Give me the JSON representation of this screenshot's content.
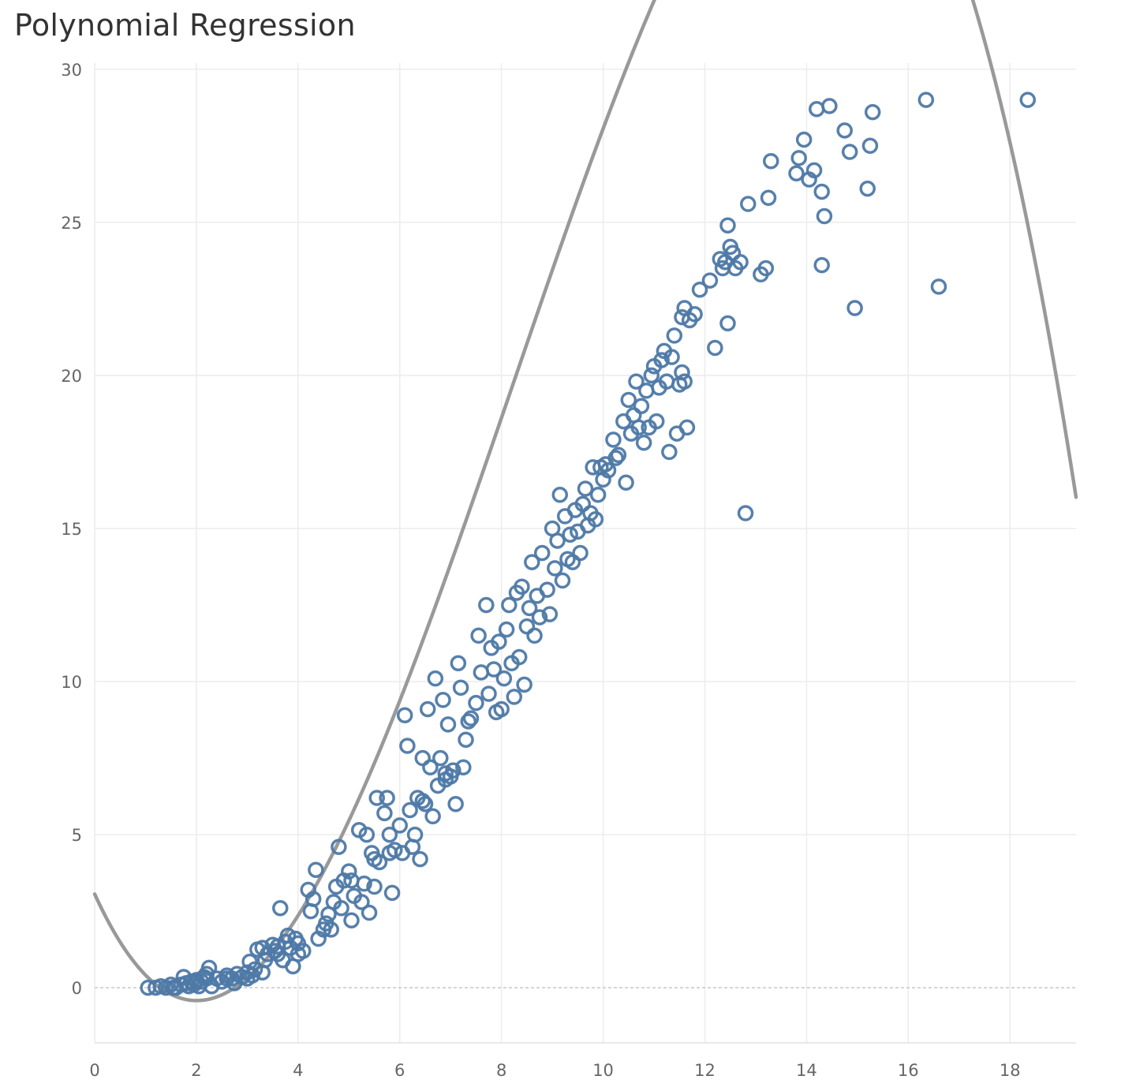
{
  "title": "Polynomial Regression",
  "chart_data": {
    "type": "scatter",
    "title": "Polynomial Regression",
    "xlabel": "",
    "ylabel": "",
    "xlim": [
      0,
      19.3
    ],
    "ylim": [
      -1.8,
      30.2
    ],
    "x_ticks": [
      "0",
      "2",
      "4",
      "6",
      "8",
      "10",
      "12",
      "14",
      "16",
      "18"
    ],
    "y_ticks": [
      "0",
      "5",
      "10",
      "15",
      "20",
      "25",
      "30"
    ],
    "grid": true,
    "colors": {
      "points": "#4e79a7",
      "trend": "#999999",
      "zero_line": "#bbbbbb",
      "grid": "#ececec"
    },
    "trend_line": {
      "type": "polynomial",
      "coefficients": [
        3.06,
        -3.64,
        1.034,
        -0.042
      ]
    },
    "series": [
      {
        "points": [
          [
            1.05,
            0.0
          ],
          [
            1.2,
            0.0
          ],
          [
            1.3,
            0.05
          ],
          [
            1.4,
            0.0
          ],
          [
            1.5,
            0.1
          ],
          [
            1.55,
            0.0
          ],
          [
            1.6,
            0.0
          ],
          [
            1.7,
            0.1
          ],
          [
            1.75,
            0.35
          ],
          [
            1.8,
            0.15
          ],
          [
            1.85,
            0.05
          ],
          [
            1.9,
            0.2
          ],
          [
            1.95,
            0.1
          ],
          [
            2.0,
            0.25
          ],
          [
            2.05,
            0.05
          ],
          [
            2.1,
            0.2
          ],
          [
            2.15,
            0.35
          ],
          [
            2.2,
            0.3
          ],
          [
            2.25,
            0.65
          ],
          [
            2.3,
            0.05
          ],
          [
            2.4,
            0.3
          ],
          [
            2.5,
            0.2
          ],
          [
            2.6,
            0.4
          ],
          [
            2.7,
            0.3
          ],
          [
            2.75,
            0.15
          ],
          [
            2.8,
            0.45
          ],
          [
            2.9,
            0.35
          ],
          [
            3.0,
            0.5
          ],
          [
            3.05,
            0.85
          ],
          [
            3.1,
            0.4
          ],
          [
            3.15,
            0.6
          ],
          [
            3.2,
            1.25
          ],
          [
            3.3,
            1.3
          ],
          [
            3.35,
            0.9
          ],
          [
            3.4,
            1.1
          ],
          [
            3.5,
            1.4
          ],
          [
            3.55,
            1.2
          ],
          [
            3.6,
            1.35
          ],
          [
            3.65,
            2.6
          ],
          [
            3.7,
            0.9
          ],
          [
            3.75,
            1.5
          ],
          [
            3.8,
            1.7
          ],
          [
            3.85,
            1.3
          ],
          [
            3.9,
            0.7
          ],
          [
            3.95,
            1.6
          ],
          [
            4.0,
            1.45
          ],
          [
            4.1,
            1.2
          ],
          [
            4.2,
            3.2
          ],
          [
            4.25,
            2.5
          ],
          [
            4.3,
            2.9
          ],
          [
            4.35,
            3.85
          ],
          [
            4.4,
            1.6
          ],
          [
            4.5,
            1.9
          ],
          [
            4.6,
            2.4
          ],
          [
            4.7,
            2.8
          ],
          [
            4.75,
            3.3
          ],
          [
            4.8,
            4.6
          ],
          [
            4.85,
            2.6
          ],
          [
            4.9,
            3.5
          ],
          [
            5.0,
            3.8
          ],
          [
            5.05,
            2.2
          ],
          [
            5.1,
            3.0
          ],
          [
            5.2,
            5.15
          ],
          [
            5.25,
            2.8
          ],
          [
            5.3,
            3.4
          ],
          [
            5.35,
            5.0
          ],
          [
            5.4,
            2.45
          ],
          [
            5.45,
            4.4
          ],
          [
            5.5,
            3.3
          ],
          [
            5.55,
            6.2
          ],
          [
            5.6,
            4.1
          ],
          [
            5.7,
            5.7
          ],
          [
            5.75,
            6.2
          ],
          [
            5.8,
            4.4
          ],
          [
            5.85,
            3.1
          ],
          [
            5.9,
            4.5
          ],
          [
            6.0,
            5.3
          ],
          [
            6.05,
            4.4
          ],
          [
            6.1,
            8.9
          ],
          [
            6.15,
            7.9
          ],
          [
            6.2,
            5.8
          ],
          [
            6.25,
            4.6
          ],
          [
            6.3,
            5.0
          ],
          [
            6.35,
            6.2
          ],
          [
            6.4,
            4.2
          ],
          [
            6.45,
            7.5
          ],
          [
            6.5,
            6.0
          ],
          [
            6.55,
            9.1
          ],
          [
            6.6,
            7.2
          ],
          [
            6.65,
            5.6
          ],
          [
            6.7,
            10.1
          ],
          [
            6.75,
            6.6
          ],
          [
            6.8,
            7.5
          ],
          [
            6.85,
            9.4
          ],
          [
            6.9,
            6.8
          ],
          [
            6.95,
            8.6
          ],
          [
            7.0,
            6.9
          ],
          [
            7.05,
            7.1
          ],
          [
            7.1,
            6.0
          ],
          [
            7.15,
            10.6
          ],
          [
            7.2,
            9.8
          ],
          [
            7.25,
            7.2
          ],
          [
            7.3,
            8.1
          ],
          [
            7.4,
            8.8
          ],
          [
            7.5,
            9.3
          ],
          [
            7.55,
            11.5
          ],
          [
            7.6,
            10.3
          ],
          [
            7.7,
            12.5
          ],
          [
            7.75,
            9.6
          ],
          [
            7.8,
            11.1
          ],
          [
            7.85,
            10.4
          ],
          [
            7.9,
            9.0
          ],
          [
            7.95,
            11.3
          ],
          [
            8.0,
            9.1
          ],
          [
            8.05,
            10.1
          ],
          [
            8.1,
            11.7
          ],
          [
            8.15,
            12.5
          ],
          [
            8.2,
            10.6
          ],
          [
            8.25,
            9.5
          ],
          [
            8.3,
            12.9
          ],
          [
            8.35,
            10.8
          ],
          [
            8.4,
            13.1
          ],
          [
            8.45,
            9.9
          ],
          [
            8.5,
            11.8
          ],
          [
            8.55,
            12.4
          ],
          [
            8.6,
            13.9
          ],
          [
            8.65,
            11.5
          ],
          [
            8.7,
            12.8
          ],
          [
            8.75,
            12.1
          ],
          [
            8.8,
            14.2
          ],
          [
            8.9,
            13.0
          ],
          [
            8.95,
            12.2
          ],
          [
            9.0,
            15.0
          ],
          [
            9.05,
            13.7
          ],
          [
            9.1,
            14.6
          ],
          [
            9.15,
            16.1
          ],
          [
            9.2,
            13.3
          ],
          [
            9.25,
            15.4
          ],
          [
            9.3,
            14.0
          ],
          [
            9.35,
            14.8
          ],
          [
            9.4,
            13.9
          ],
          [
            9.45,
            15.6
          ],
          [
            9.5,
            14.9
          ],
          [
            9.55,
            14.2
          ],
          [
            9.6,
            15.8
          ],
          [
            9.65,
            16.3
          ],
          [
            9.7,
            15.1
          ],
          [
            9.75,
            15.5
          ],
          [
            9.8,
            17.0
          ],
          [
            9.85,
            15.3
          ],
          [
            9.9,
            16.1
          ],
          [
            9.95,
            17.0
          ],
          [
            10.0,
            16.6
          ],
          [
            10.05,
            17.1
          ],
          [
            10.1,
            16.9
          ],
          [
            10.2,
            17.9
          ],
          [
            10.25,
            17.3
          ],
          [
            10.3,
            17.4
          ],
          [
            10.4,
            18.5
          ],
          [
            10.45,
            16.5
          ],
          [
            10.5,
            19.2
          ],
          [
            10.55,
            18.1
          ],
          [
            10.6,
            18.7
          ],
          [
            10.65,
            19.8
          ],
          [
            10.7,
            18.3
          ],
          [
            10.75,
            19.0
          ],
          [
            10.8,
            17.8
          ],
          [
            10.85,
            19.5
          ],
          [
            10.9,
            18.3
          ],
          [
            10.95,
            20.0
          ],
          [
            11.0,
            20.3
          ],
          [
            11.05,
            18.5
          ],
          [
            11.1,
            19.6
          ],
          [
            11.15,
            20.5
          ],
          [
            11.2,
            20.8
          ],
          [
            11.25,
            19.8
          ],
          [
            11.3,
            17.5
          ],
          [
            11.35,
            20.6
          ],
          [
            11.4,
            21.3
          ],
          [
            11.45,
            18.1
          ],
          [
            11.5,
            19.7
          ],
          [
            11.55,
            20.1
          ],
          [
            11.6,
            19.8
          ],
          [
            11.65,
            18.3
          ],
          [
            11.7,
            21.8
          ],
          [
            11.55,
            21.9
          ],
          [
            11.6,
            22.2
          ],
          [
            11.8,
            22.0
          ],
          [
            11.9,
            22.8
          ],
          [
            12.1,
            23.1
          ],
          [
            12.2,
            20.9
          ],
          [
            12.3,
            23.8
          ],
          [
            12.35,
            23.5
          ],
          [
            12.4,
            23.7
          ],
          [
            12.45,
            21.7
          ],
          [
            12.5,
            24.2
          ],
          [
            12.55,
            24.0
          ],
          [
            12.6,
            23.5
          ],
          [
            12.7,
            23.7
          ],
          [
            12.8,
            15.5
          ],
          [
            12.45,
            24.9
          ],
          [
            12.85,
            25.6
          ],
          [
            13.1,
            23.3
          ],
          [
            13.2,
            23.5
          ],
          [
            13.25,
            25.8
          ],
          [
            13.3,
            27.0
          ],
          [
            13.8,
            26.6
          ],
          [
            13.85,
            27.1
          ],
          [
            13.95,
            27.7
          ],
          [
            14.05,
            26.4
          ],
          [
            14.15,
            26.7
          ],
          [
            14.2,
            28.7
          ],
          [
            14.3,
            26.0
          ],
          [
            14.3,
            23.6
          ],
          [
            14.35,
            25.2
          ],
          [
            14.45,
            28.8
          ],
          [
            14.75,
            28.0
          ],
          [
            14.85,
            27.3
          ],
          [
            14.95,
            22.2
          ],
          [
            15.2,
            26.1
          ],
          [
            15.25,
            27.5
          ],
          [
            15.3,
            28.6
          ],
          [
            16.35,
            29.0
          ],
          [
            16.6,
            22.9
          ],
          [
            18.35,
            29.0
          ],
          [
            2.0,
            0.2
          ],
          [
            2.2,
            0.45
          ],
          [
            2.6,
            0.3
          ],
          [
            3.0,
            0.3
          ],
          [
            3.3,
            0.5
          ],
          [
            3.6,
            1.1
          ],
          [
            4.0,
            1.1
          ],
          [
            4.55,
            2.1
          ],
          [
            4.65,
            1.9
          ],
          [
            5.05,
            3.5
          ],
          [
            5.5,
            4.2
          ],
          [
            5.8,
            5.0
          ],
          [
            6.45,
            6.1
          ],
          [
            6.9,
            7.0
          ],
          [
            7.35,
            8.7
          ]
        ]
      }
    ]
  }
}
